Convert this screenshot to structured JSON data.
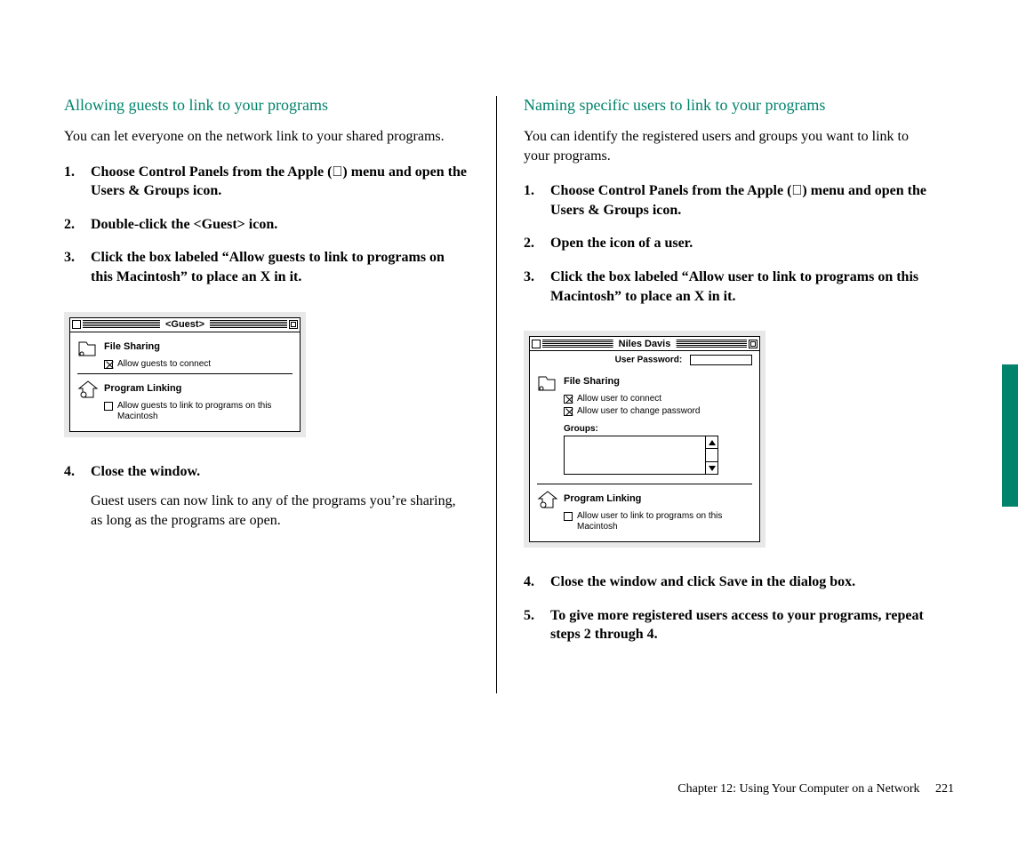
{
  "colors": {
    "heading": "#00836b",
    "page_bg": "#ffffff",
    "dialog_bg": "#e8e8e8",
    "tab": "#00836b"
  },
  "left": {
    "heading": "Allowing guests to link to your programs",
    "intro": "You can let everyone on the network link to your shared programs.",
    "steps": [
      {
        "html": "Choose Control Panels from the Apple (<span class=\"apple\"></span>) menu and open the Users & Groups icon."
      },
      {
        "html": "Double-click the &lt;Guest&gt; icon."
      },
      {
        "html": "Click the box labeled “Allow guests to link to programs on this Macintosh” to place an X in it."
      }
    ],
    "steps2": [
      {
        "html": "Close the window.",
        "sub": "Guest users can now link to any of the programs you’re sharing, as long as the programs are open."
      }
    ],
    "dialog": {
      "title": "<Guest>",
      "file_sharing": "File Sharing",
      "fs_check": {
        "checked": true,
        "label": "Allow guests to connect"
      },
      "program_linking": "Program Linking",
      "pl_check": {
        "checked": false,
        "label": "Allow guests to link to programs on this Macintosh"
      }
    }
  },
  "right": {
    "heading": "Naming specific users to link to your programs",
    "intro": "You can identify the registered users and groups you want to link to your programs.",
    "steps": [
      {
        "html": "Choose Control Panels from the Apple (<span class=\"apple\"></span>) menu and open the Users & Groups icon."
      },
      {
        "html": "Open the icon of a user."
      },
      {
        "html": "Click the box labeled “Allow user to link to programs on this Macintosh” to place an X in it."
      }
    ],
    "steps2": [
      {
        "html": "Close the window and click Save in the dialog box."
      },
      {
        "html": "To give more registered users access to your programs, repeat steps 2 through 4."
      }
    ],
    "dialog": {
      "title": "Niles Davis",
      "pw_label": "User Password:",
      "file_sharing": "File Sharing",
      "fs_checks": [
        {
          "checked": true,
          "label": "Allow user to connect"
        },
        {
          "checked": true,
          "label": "Allow user to change password"
        }
      ],
      "groups_label": "Groups:",
      "program_linking": "Program Linking",
      "pl_check": {
        "checked": false,
        "label": "Allow user to link to programs on this Macintosh"
      }
    }
  },
  "footer": {
    "chapter": "Chapter 12: Using Your Computer on a Network",
    "page": "221"
  }
}
